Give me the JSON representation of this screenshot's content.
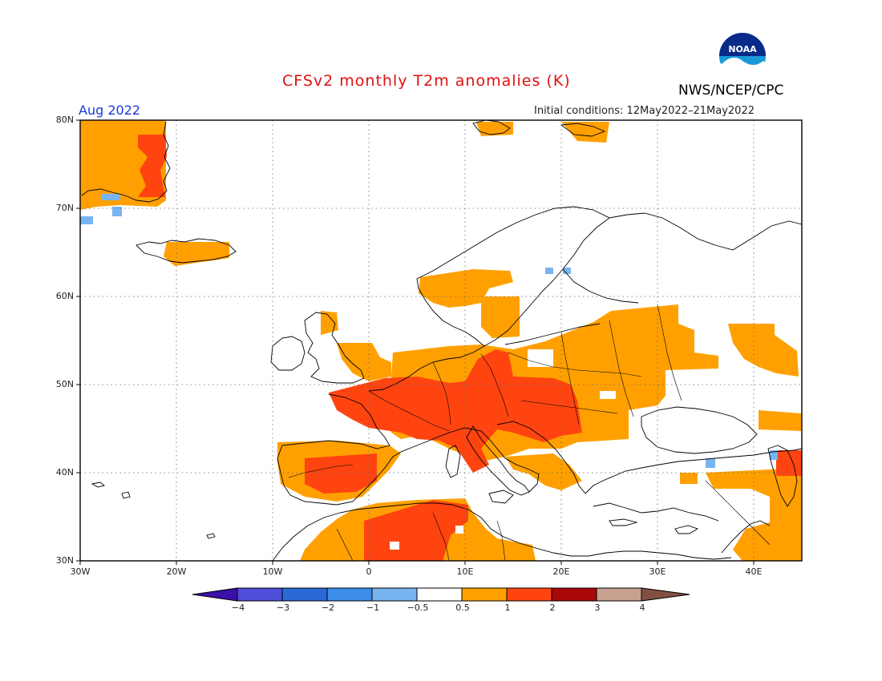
{
  "title": "CFSv2 monthly T2m anomalies (K)",
  "agency": "NWS/NCEP/CPC",
  "logo_text": "NOAA",
  "month": "Aug 2022",
  "initial_conditions": "Initial conditions: 12May2022–21May2022",
  "lat_labels": [
    "80N",
    "70N",
    "60N",
    "50N",
    "40N",
    "30N"
  ],
  "lon_labels": [
    "30W",
    "20W",
    "10W",
    "0",
    "10E",
    "20E",
    "30E",
    "40E"
  ],
  "colorbar": {
    "labels": [
      "−4",
      "−3",
      "−2",
      "−1",
      "−0.5",
      "0.5",
      "1",
      "2",
      "3",
      "4"
    ],
    "colors": [
      "#3a10a8",
      "#4e4ed8",
      "#2a6ad8",
      "#3c8ee8",
      "#78b4f0",
      "#ffffff",
      "#ffa000",
      "#ff4410",
      "#a80808",
      "#c8a090",
      "#805040"
    ]
  },
  "anomaly_colors": {
    "warm_0_5_1": "#ffa000",
    "warm_1_2": "#ff4410",
    "cool_minus0_5_minus1": "#78b4f0"
  }
}
